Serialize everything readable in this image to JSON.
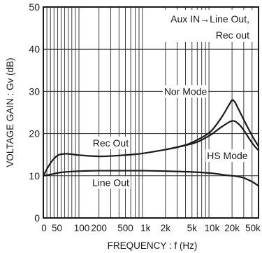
{
  "chart_data": {
    "type": "line",
    "title": "",
    "xlabel": "FREQUENCY : f (Hz)",
    "ylabel": "VOLTAGE GAIN : Gv (dB)",
    "xscale": "mixed (linear 0–100, log 100–50k)",
    "xlim": [
      0,
      50000
    ],
    "ylim": [
      0,
      50
    ],
    "grid": true,
    "x_ticks": [
      {
        "value": 0,
        "label": "0"
      },
      {
        "value": 50,
        "label": "50"
      },
      {
        "value": 100,
        "label": "100"
      },
      {
        "value": 200,
        "label": "200"
      },
      {
        "value": 500,
        "label": "500"
      },
      {
        "value": 1000,
        "label": "1k"
      },
      {
        "value": 2000,
        "label": "2k"
      },
      {
        "value": 5000,
        "label": "5k"
      },
      {
        "value": 10000,
        "label": "10k"
      },
      {
        "value": 20000,
        "label": "20k"
      },
      {
        "value": 50000,
        "label": "50k"
      }
    ],
    "y_ticks": [
      {
        "value": 0,
        "label": "0"
      },
      {
        "value": 10,
        "label": "10"
      },
      {
        "value": 20,
        "label": "20"
      },
      {
        "value": 30,
        "label": "30"
      },
      {
        "value": 40,
        "label": "40"
      },
      {
        "value": 50,
        "label": "50"
      }
    ],
    "condition_text": {
      "line1": "Aux IN→Line Out,",
      "line2": "Rec out"
    },
    "series": [
      {
        "name": "Rec Out",
        "x": [
          0,
          20,
          40,
          60,
          80,
          100,
          200,
          400,
          700,
          1000,
          2000,
          4000,
          6000,
          8000,
          10000,
          14000,
          20000,
          25000,
          30000,
          40000,
          50000
        ],
        "y": [
          10,
          13,
          14.8,
          15.2,
          15.1,
          14.9,
          14.6,
          14.8,
          15.1,
          15.4,
          16.2,
          17.2,
          18.0,
          19.0,
          19.9,
          21.6,
          23.0,
          22.3,
          20.8,
          17.8,
          16.0
        ]
      },
      {
        "name": "Nor Mode",
        "x": [
          2000,
          4000,
          6000,
          8000,
          10000,
          14000,
          18000,
          20000,
          22000,
          25000,
          30000,
          40000,
          50000
        ],
        "y": [
          16.2,
          17.3,
          18.5,
          19.6,
          20.8,
          23.9,
          26.8,
          27.9,
          27.5,
          25.8,
          23.3,
          19.5,
          17.0
        ]
      },
      {
        "name": "Line Out",
        "x": [
          0,
          20,
          50,
          100,
          200,
          500,
          1000,
          2000,
          5000,
          10000,
          15000,
          20000,
          25000,
          30000,
          40000,
          50000
        ],
        "y": [
          10,
          10.3,
          10.8,
          11.1,
          11.2,
          11.2,
          11.2,
          11.1,
          10.9,
          10.6,
          10.2,
          10.0,
          9.8,
          9.5,
          8.6,
          7.6
        ]
      }
    ],
    "annotations": [
      {
        "text": "Nor Mode",
        "x": 4000,
        "y": 30
      },
      {
        "text": "Rec Out",
        "x": 300,
        "y": 17.8
      },
      {
        "text": "HS Mode",
        "x": 17000,
        "y": 14.8
      },
      {
        "text": "Line Out",
        "x": 300,
        "y": 8.4
      }
    ]
  }
}
